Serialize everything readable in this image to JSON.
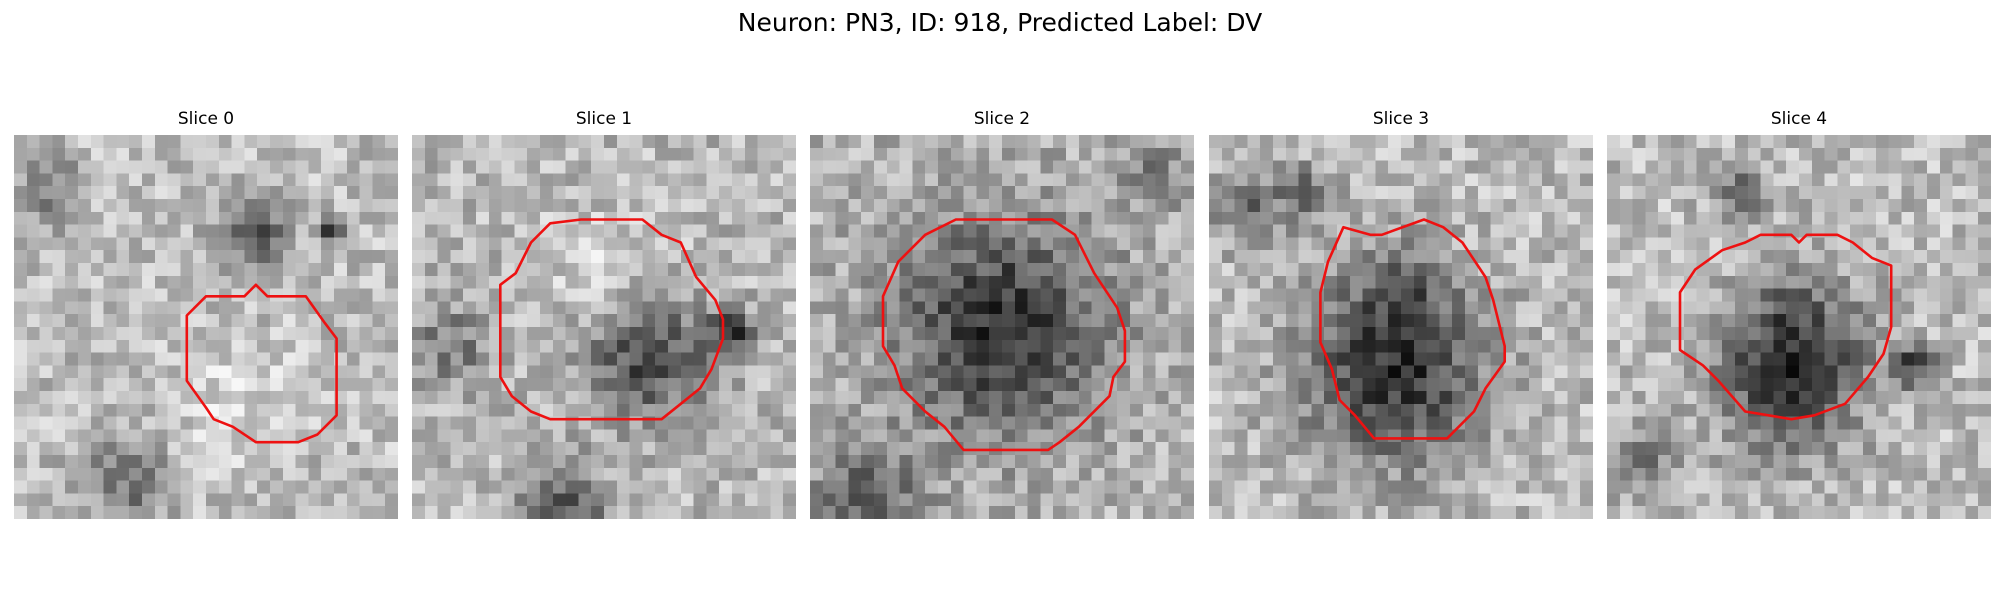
{
  "figure": {
    "title": "Neuron: PN3, ID: 918, Predicted Label: DV"
  },
  "panels": [
    {
      "title": "Slice 0"
    },
    {
      "title": "Slice 1"
    },
    {
      "title": "Slice 2"
    },
    {
      "title": "Slice 3"
    },
    {
      "title": "Slice 4"
    }
  ],
  "colors": {
    "contour": "#ee1111",
    "background": "#ffffff"
  }
}
